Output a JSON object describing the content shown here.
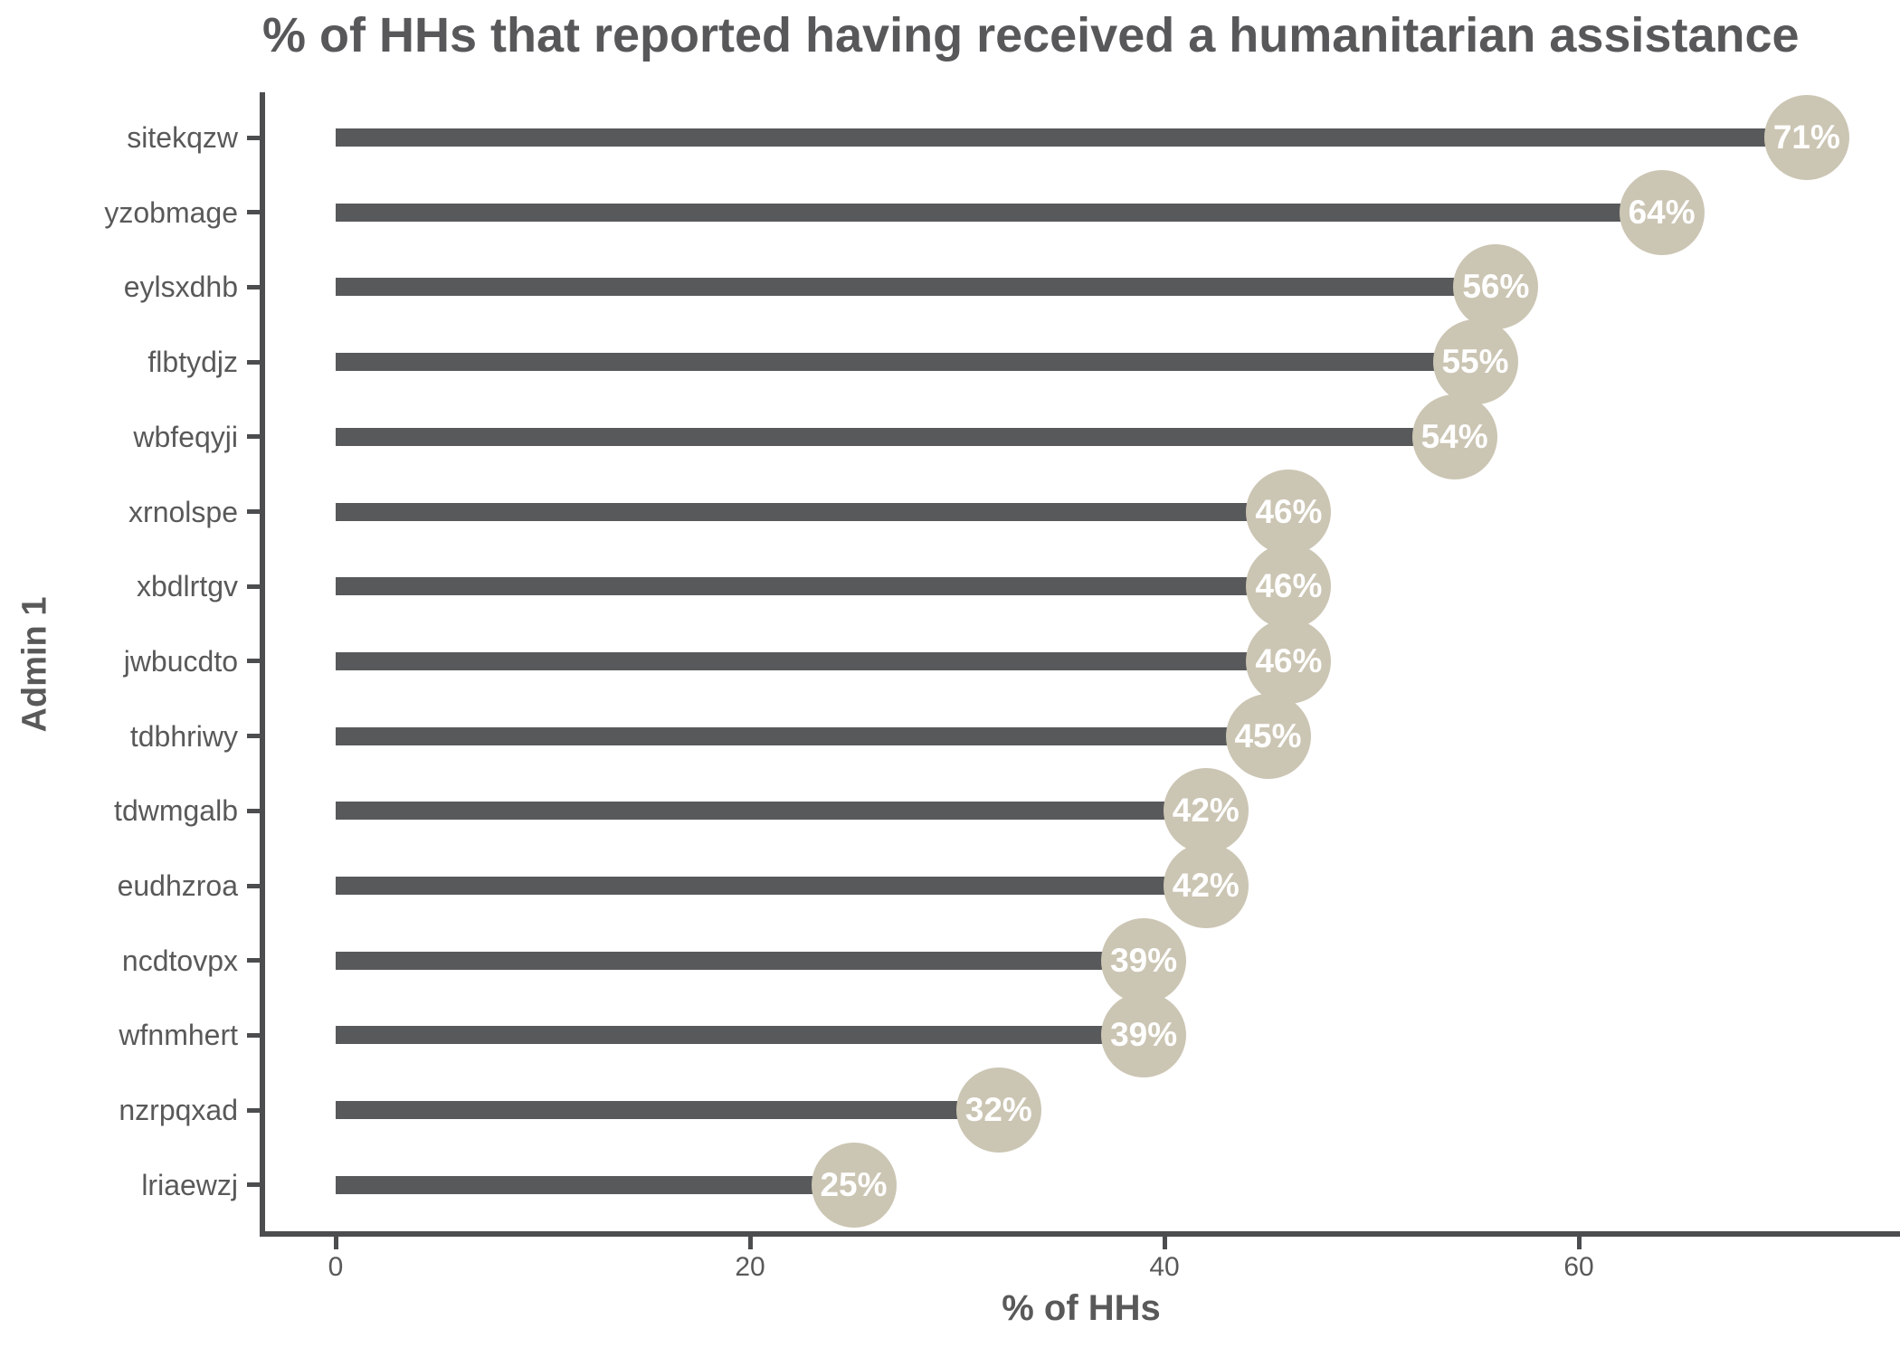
{
  "chart_data": {
    "type": "bar",
    "variant": "lollipop-horizontal",
    "title": "% of HHs that reported having received a humanitarian assistance",
    "xlabel": "% of HHs",
    "ylabel": "Admin 1",
    "categories": [
      "sitekqzw",
      "yzobmage",
      "eylsxdhb",
      "flbtydjz",
      "wbfeqyji",
      "xrnolspe",
      "xbdlrtgv",
      "jwbucdto",
      "tdbhriwy",
      "tdwmgalb",
      "eudhzroa",
      "ncdtovpx",
      "wfnmhert",
      "nzrpqxad",
      "lriaewzj"
    ],
    "values": [
      71,
      64,
      56,
      55,
      54,
      46,
      46,
      46,
      45,
      42,
      42,
      39,
      39,
      32,
      25
    ],
    "data_labels": [
      "71%",
      "64%",
      "56%",
      "55%",
      "54%",
      "46%",
      "46%",
      "46%",
      "45%",
      "42%",
      "42%",
      "39%",
      "39%",
      "32%",
      "25%"
    ],
    "value_suffix": "%",
    "xlim": [
      0,
      75.5
    ],
    "xticks": [
      0,
      20,
      40,
      60
    ],
    "grid": "off",
    "legend": "none",
    "colors": {
      "bar": "#58595B",
      "bubble_fill": "#CBC5B3",
      "bubble_text": "#FFFFFF",
      "axis_line": "#4C4D4F",
      "label_text": "#595959",
      "title_text": "#58585A",
      "background": "#FFFFFF"
    }
  }
}
